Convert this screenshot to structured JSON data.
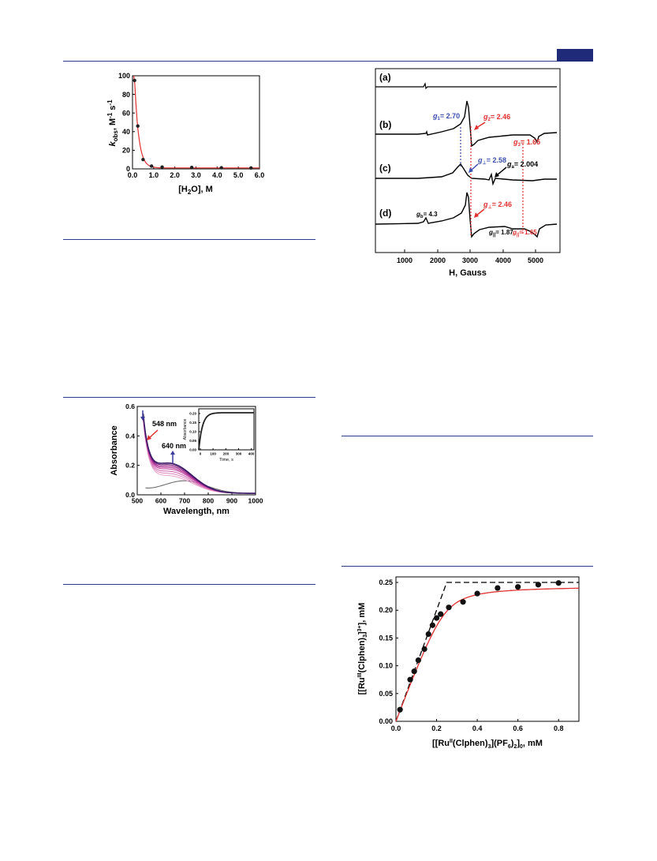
{
  "page": {
    "header_color": "#1f2a78",
    "rule_color": "#2e3a8c"
  },
  "figures": {
    "kobs": {
      "ylabel_main": "k",
      "ylabel_sub": "obs",
      "ylabel_rest": ", M",
      "ylabel_sup1": "-1",
      "ylabel_s": " s",
      "ylabel_sup2": "-1",
      "xlabel_a": "[H",
      "xlabel_sub": "2",
      "xlabel_b": "O], M",
      "xticks": [
        "0.0",
        "1.0",
        "2.0",
        "3.0",
        "4.0",
        "5.0",
        "6.0"
      ],
      "yticks": [
        "0",
        "20",
        "40",
        "60",
        "80",
        "100"
      ]
    },
    "uvvis": {
      "ylabel": "Absorbance",
      "xlabel": "Wavelength, nm",
      "xticks": [
        "500",
        "600",
        "700",
        "800",
        "900",
        "1000"
      ],
      "yticks": [
        "0.0",
        "0.2",
        "0.4",
        "0.6"
      ],
      "ann1": "548 nm",
      "ann2": "640 nm",
      "inset_ylabel": "Absorbance",
      "inset_xlabel": "Time, s",
      "inset_xticks": [
        "0",
        "100",
        "200",
        "300",
        "400"
      ],
      "inset_yticks": [
        "0.00",
        "0.05",
        "0.10",
        "0.15",
        "0.20"
      ]
    },
    "epr": {
      "labels": [
        "(a)",
        "(b)",
        "(c)",
        "(d)"
      ],
      "xlabel": "H, Gauss",
      "xticks": [
        "1000",
        "2000",
        "3000",
        "4000",
        "5000"
      ],
      "g1": "g",
      "g1_sub": "1",
      "g1_val": "= 2.70",
      "g2": "g",
      "g2_sub": "2",
      "g2_val": "= 2.46",
      "g3": "g",
      "g3_sub": "3",
      "g3_val": "= 1.65",
      "gperp_c": "g",
      "gperp_c_sub": "⊥",
      "gperp_c_val": "= 2.58",
      "ga": "g",
      "ga_sub": "a",
      "ga_val": "= 2.004",
      "gb": "g",
      "gb_sub": "b",
      "gb_val": "= 4.3",
      "gperp_d": "g",
      "gperp_d_sub": "⊥",
      "gperp_d_val": "= 2.46",
      "gpar": "g",
      "gpar_sub": "||",
      "gpar_val": "= 1.87",
      "gpar2": "g",
      "gpar2_sub": "||",
      "gpar2_val": "= 1.65",
      "blue": "#3b4fb0",
      "red": "#e03030"
    }
  },
  "chart_data": [
    {
      "type": "scatter",
      "xlabel": "[H2O], M",
      "ylabel": "kobs, M-1 s-1",
      "xlim": [
        0,
        6
      ],
      "ylim": [
        0,
        100
      ],
      "x": [
        0.1,
        0.25,
        0.5,
        0.9,
        1.4,
        2.8,
        4.2,
        5.6
      ],
      "y": [
        95,
        46,
        10,
        3,
        2,
        1.5,
        1.2,
        1.0
      ],
      "fit_color": "#e03030"
    },
    {
      "type": "line",
      "xlabel": "Wavelength, nm",
      "ylabel": "Absorbance",
      "xlim": [
        500,
        1000
      ],
      "ylim": [
        0,
        0.6
      ],
      "annotations": [
        "548 nm",
        "640 nm"
      ],
      "inset": {
        "xlabel": "Time, s",
        "ylabel": "Absorbance",
        "xlim": [
          0,
          420
        ],
        "ylim": [
          0,
          0.2
        ]
      }
    },
    {
      "type": "line",
      "xlabel": "H, Gauss",
      "xlim": [
        200,
        5100
      ],
      "series": [
        {
          "name": "(a)"
        },
        {
          "name": "(b)"
        },
        {
          "name": "(c)"
        },
        {
          "name": "(d)"
        }
      ]
    },
    {
      "type": "scatter",
      "xlabel": "[[RuII(Clphen)3](PF6)2]0, mM",
      "ylabel": "[[RuIII(Clphen)3]3+], mM",
      "xlim": [
        0,
        0.9
      ],
      "ylim": [
        0,
        0.26
      ],
      "xticks": [
        "0.0",
        "0.2",
        "0.4",
        "0.6",
        "0.8"
      ],
      "yticks": [
        "0.00",
        "0.05",
        "0.10",
        "0.15",
        "0.20",
        "0.25"
      ],
      "x": [
        0.02,
        0.07,
        0.09,
        0.11,
        0.14,
        0.16,
        0.18,
        0.2,
        0.22,
        0.26,
        0.33,
        0.4,
        0.5,
        0.6,
        0.7,
        0.8
      ],
      "y": [
        0.021,
        0.075,
        0.09,
        0.11,
        0.13,
        0.157,
        0.173,
        0.186,
        0.193,
        0.205,
        0.215,
        0.23,
        0.24,
        0.242,
        0.246,
        0.249
      ],
      "dashed_line": {
        "x": [
          0,
          0.25,
          0.9
        ],
        "y": [
          0,
          0.25,
          0.25
        ]
      },
      "fit_color": "#e03030",
      "xlabel_parts": {
        "a": "[[Ru",
        "sup": "II",
        "b": "(Clphen)",
        "sub1": "3",
        "c": "](PF",
        "sub2": "6",
        "d": ")",
        "sub3": "2",
        "e": "]",
        "sub4": "0",
        "f": ", mM"
      },
      "ylabel_parts": {
        "a": "[[Ru",
        "sup1": "III",
        "b": "(Clphen)",
        "sub": "3",
        "c": "]",
        "sup2": "3+",
        "d": "], mM"
      }
    }
  ]
}
